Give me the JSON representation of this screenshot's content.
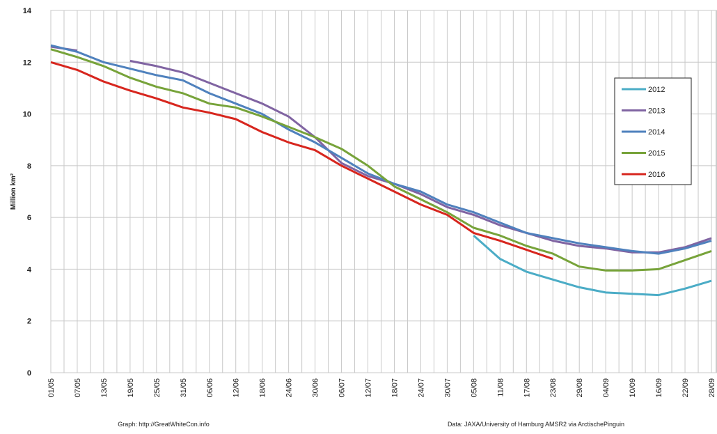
{
  "chart_data": {
    "type": "line",
    "y_label": "Million km²",
    "footer_left": "Graph: http://GreatWhiteCon.info",
    "footer_right": "Data: JAXA/University of Hamburg AMSR2 via ArctischePinguin",
    "categories": [
      "01/05",
      "07/05",
      "13/05",
      "19/05",
      "25/05",
      "31/05",
      "06/06",
      "12/06",
      "18/06",
      "24/06",
      "30/06",
      "06/07",
      "12/07",
      "18/07",
      "24/07",
      "30/07",
      "05/08",
      "11/08",
      "17/08",
      "23/08",
      "29/08",
      "04/09",
      "10/09",
      "16/09",
      "22/09",
      "28/09"
    ],
    "series": [
      {
        "name": "2012",
        "color": "#4bacc6",
        "values": [
          null,
          null,
          null,
          null,
          null,
          null,
          null,
          null,
          null,
          null,
          null,
          null,
          null,
          null,
          null,
          null,
          5.3,
          4.4,
          3.9,
          3.6,
          3.3,
          3.1,
          3.05,
          3.0,
          3.25,
          3.55
        ]
      },
      {
        "name": "2013",
        "color": "#8064a2",
        "values": [
          12.6,
          12.45,
          null,
          12.05,
          11.85,
          11.6,
          11.2,
          10.8,
          10.4,
          9.9,
          9.1,
          8.1,
          7.6,
          7.3,
          6.9,
          6.4,
          6.1,
          5.7,
          5.4,
          5.1,
          4.9,
          4.8,
          4.65,
          4.65,
          4.85,
          5.2
        ]
      },
      {
        "name": "2014",
        "color": "#4f81bd",
        "values": [
          12.65,
          12.4,
          12.0,
          11.75,
          11.5,
          11.3,
          10.8,
          10.4,
          10.0,
          9.4,
          8.9,
          8.3,
          7.7,
          7.3,
          7.0,
          6.5,
          6.2,
          5.8,
          5.4,
          5.2,
          5.0,
          4.85,
          4.7,
          4.6,
          4.8,
          5.1
        ]
      },
      {
        "name": "2015",
        "color": "#77a33a",
        "values": [
          12.5,
          12.2,
          11.85,
          11.4,
          11.05,
          10.8,
          10.4,
          10.25,
          9.9,
          9.5,
          9.1,
          8.65,
          8.0,
          7.2,
          6.7,
          6.2,
          5.6,
          5.3,
          4.9,
          4.6,
          4.1,
          3.95,
          3.95,
          4.0,
          4.35,
          4.7
        ]
      },
      {
        "name": "2016",
        "color": "#d7261e",
        "values": [
          12.0,
          11.7,
          11.25,
          10.9,
          10.6,
          10.25,
          10.05,
          9.8,
          9.3,
          8.9,
          8.6,
          8.0,
          7.5,
          7.0,
          6.5,
          6.1,
          5.4,
          5.1,
          4.75,
          4.4,
          null,
          null,
          null,
          null,
          null,
          null
        ]
      }
    ],
    "ylim": [
      0,
      14
    ],
    "yticks": [
      0,
      2,
      4,
      6,
      8,
      10,
      12,
      14
    ],
    "grid": true
  }
}
